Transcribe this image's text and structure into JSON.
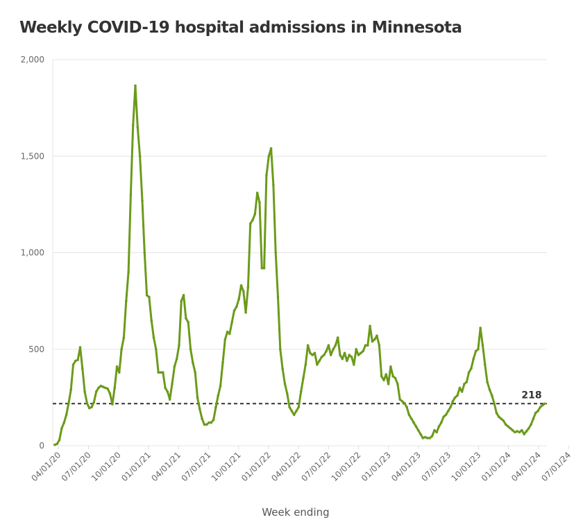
{
  "chart_data": {
    "type": "line",
    "title": "Weekly COVID-19 hospital admissions in Minnesota",
    "xlabel": "Week ending",
    "ylabel": "",
    "ylim": [
      0,
      2000
    ],
    "yticks": [
      0,
      500,
      1000,
      1500,
      2000
    ],
    "ytick_labels": [
      "0",
      "500",
      "1,000",
      "1,500",
      "2,000"
    ],
    "xtick_labels": [
      "04/01/20",
      "07/01/20",
      "10/01/20",
      "01/01/21",
      "04/01/21",
      "07/01/21",
      "10/01/21",
      "01/01/22",
      "04/01/22",
      "07/01/22",
      "10/01/22",
      "01/01/23",
      "04/01/23",
      "07/01/23",
      "10/01/23",
      "01/01/24",
      "04/01/24",
      "07/01/24"
    ],
    "grid": true,
    "legend": "none",
    "x_start_week": "03/21/20",
    "x_interval": "weekly",
    "series": [
      {
        "name": "Weekly hospital admissions",
        "color": "#6b9a1a",
        "values": [
          5,
          10,
          30,
          90,
          120,
          160,
          220,
          290,
          420,
          440,
          445,
          510,
          400,
          280,
          220,
          195,
          200,
          225,
          280,
          300,
          310,
          305,
          300,
          295,
          270,
          215,
          300,
          410,
          380,
          500,
          560,
          750,
          900,
          1300,
          1660,
          1865,
          1650,
          1500,
          1270,
          1000,
          780,
          770,
          650,
          560,
          500,
          380,
          380,
          380,
          300,
          280,
          240,
          320,
          410,
          450,
          520,
          750,
          780,
          660,
          640,
          500,
          430,
          380,
          250,
          190,
          140,
          110,
          110,
          120,
          120,
          135,
          200,
          260,
          310,
          430,
          550,
          590,
          580,
          640,
          700,
          720,
          760,
          830,
          800,
          690,
          820,
          1150,
          1170,
          1200,
          1310,
          1260,
          920,
          920,
          1400,
          1500,
          1540,
          1350,
          1000,
          770,
          500,
          400,
          320,
          270,
          200,
          180,
          160,
          180,
          200,
          280,
          350,
          420,
          520,
          480,
          470,
          480,
          420,
          440,
          460,
          470,
          490,
          520,
          470,
          500,
          520,
          560,
          470,
          450,
          480,
          440,
          470,
          460,
          420,
          500,
          470,
          480,
          490,
          520,
          520,
          620,
          540,
          550,
          570,
          520,
          360,
          340,
          370,
          320,
          410,
          360,
          350,
          320,
          240,
          230,
          220,
          200,
          160,
          140,
          120,
          100,
          80,
          60,
          40,
          45,
          40,
          40,
          50,
          80,
          70,
          100,
          120,
          150,
          160,
          180,
          200,
          230,
          250,
          260,
          300,
          280,
          320,
          330,
          380,
          400,
          450,
          490,
          500,
          610,
          520,
          420,
          330,
          290,
          260,
          220,
          170,
          150,
          140,
          130,
          110,
          100,
          90,
          80,
          70,
          75,
          70,
          80,
          60,
          75,
          90,
          110,
          140,
          170,
          180,
          200,
          210,
          218
        ]
      }
    ],
    "annotations": [
      {
        "text": "218",
        "value": 218,
        "description": "Reference dashed line at latest value"
      }
    ]
  }
}
